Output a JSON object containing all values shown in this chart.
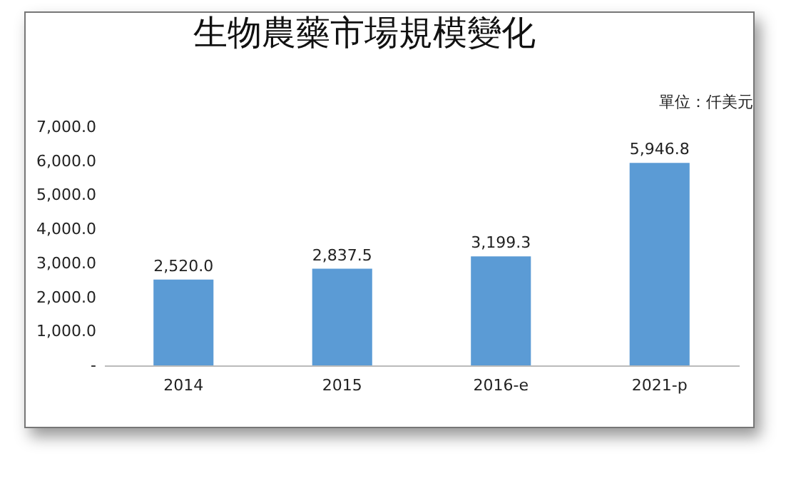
{
  "chart_data": {
    "type": "bar",
    "title": "生物農藥市場規模變化",
    "annotations": [
      "單位：仟美元"
    ],
    "categories": [
      "2014",
      "2015",
      "2016-e",
      "2021-p"
    ],
    "values": [
      2520.0,
      2837.5,
      3199.3,
      5946.8
    ],
    "value_labels": [
      "2,520.0",
      "2,837.5",
      "3,199.3",
      "5,946.8"
    ],
    "color": "#5b9bd5",
    "ylim": [
      0,
      7000
    ],
    "yticks": [
      {
        "value": 0,
        "label": "-"
      },
      {
        "value": 1000,
        "label": "1,000.0"
      },
      {
        "value": 2000,
        "label": "2,000.0"
      },
      {
        "value": 3000,
        "label": "3,000.0"
      },
      {
        "value": 4000,
        "label": "4,000.0"
      },
      {
        "value": 5000,
        "label": "5,000.0"
      },
      {
        "value": 6000,
        "label": "6,000.0"
      },
      {
        "value": 7000,
        "label": "7,000.0"
      }
    ],
    "grid": false
  }
}
